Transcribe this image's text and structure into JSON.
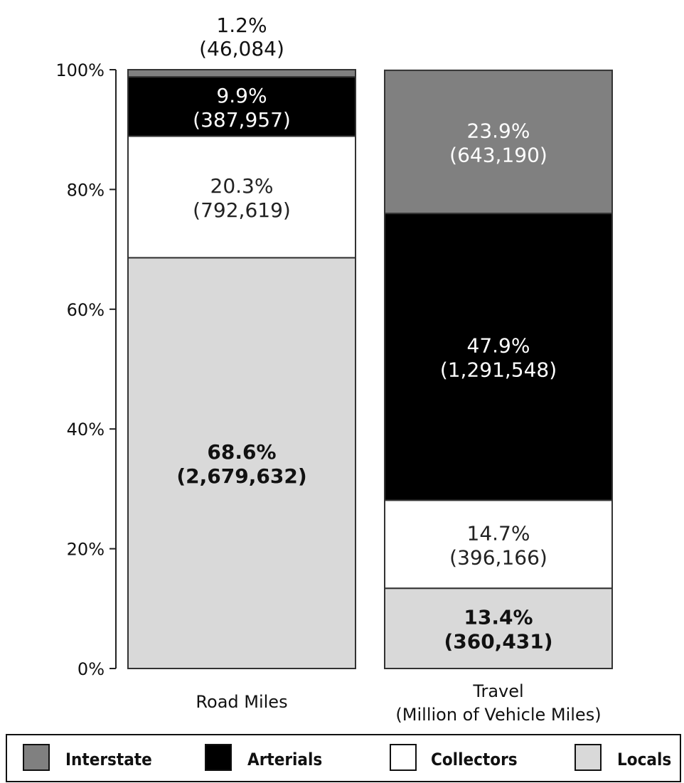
{
  "chart_data": {
    "type": "bar",
    "stacked": true,
    "title": "",
    "xlabel": "",
    "ylabel": "",
    "ylim": [
      0,
      100
    ],
    "yticks": [
      "0%",
      "20%",
      "40%",
      "60%",
      "80%",
      "100%"
    ],
    "grid": false,
    "legend_position": "bottom",
    "categories": [
      {
        "id": "road",
        "label_lines": [
          "Road Miles"
        ]
      },
      {
        "id": "travel",
        "label_lines": [
          "Travel",
          "(Million of Vehicle Miles)"
        ]
      }
    ],
    "series": [
      {
        "name": "Locals",
        "color": "#d9d9d9",
        "text_color": "#111111",
        "bold": true,
        "values": [
          68.6,
          13.4
        ],
        "pct_labels": [
          "68.6%",
          "13.4%"
        ],
        "count_labels": [
          "(2,679,632)",
          "(360,431)"
        ]
      },
      {
        "name": "Collectors",
        "color": "#ffffff",
        "text_color": "#222222",
        "bold": false,
        "values": [
          20.3,
          14.7
        ],
        "pct_labels": [
          "20.3%",
          "14.7%"
        ],
        "count_labels": [
          "(792,619)",
          "(396,166)"
        ]
      },
      {
        "name": "Arterials",
        "color": "#000000",
        "text_color": "#ffffff",
        "bold": false,
        "values": [
          9.9,
          47.9
        ],
        "pct_labels": [
          "9.9%",
          "47.9%"
        ],
        "count_labels": [
          "(387,957)",
          "(1,291,548)"
        ]
      },
      {
        "name": "Interstate",
        "color": "#808080",
        "text_color": "#ffffff",
        "bold": false,
        "values": [
          1.2,
          23.9
        ],
        "pct_labels": [
          "1.2%",
          "23.9%"
        ],
        "count_labels": [
          "(46,084)",
          "(643,190)"
        ]
      }
    ]
  }
}
